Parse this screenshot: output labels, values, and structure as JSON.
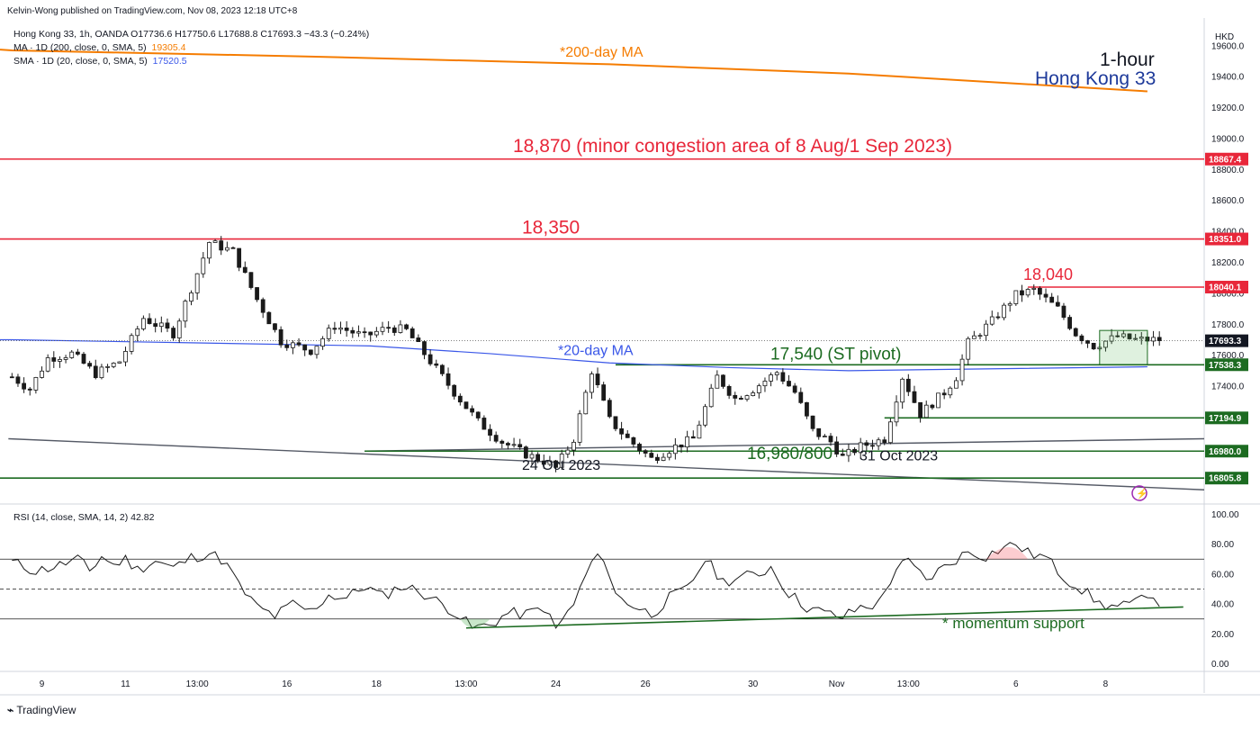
{
  "header": {
    "published_by": "Kelvin-Wong published on TradingView.com, Nov 08, 2023 12:18 UTC+8",
    "symbol_line": "Hong Kong 33, 1h, OANDA  O17736.6  H17750.6  L17688.8  C17693.3  −43.3 (−0.24%)",
    "ma200_label": "MA · 1D (200, close, 0, SMA, 5)",
    "ma200_value": "19305.4",
    "sma20_label": "SMA · 1D (20, close, 0, SMA, 5)",
    "sma20_value": "17520.5",
    "currency": "HKD"
  },
  "titles": {
    "timeframe": "1-hour",
    "instrument": "Hong Kong 33"
  },
  "footer": {
    "brand": "TradingView"
  },
  "colors": {
    "red_level": "#e8273a",
    "green_level": "#1c6b21",
    "candle_up": "#1a1a1a",
    "candle_down": "#1a1a1a",
    "ma200": "#f57c00",
    "sma20": "#3a57e8",
    "trendline": "#555a66",
    "price_tag": "#131722",
    "rsi_line": "#1a1a1a"
  },
  "chart_data": [
    {
      "type": "candlestick",
      "ylim": [
        16650,
        19750
      ],
      "y_ticks": [
        "19600.0",
        "19400.0",
        "19200.0",
        "19000.0",
        "18800.0",
        "18600.0",
        "18400.0",
        "18200.0",
        "18000.0",
        "17800.0",
        "17600.0",
        "17400.0",
        "17200.0",
        "17000.0",
        "16800.0"
      ],
      "x_ticks": [
        "9",
        "11",
        "13:00",
        "16",
        "18",
        "13:00",
        "24",
        "26",
        "30",
        "Nov",
        "13:00",
        "6",
        "8"
      ],
      "x_tick_index": [
        5,
        19,
        31,
        46,
        61,
        76,
        91,
        106,
        124,
        138,
        150,
        168,
        183
      ],
      "bars": 200,
      "price_anchors": [
        [
          0,
          17460
        ],
        [
          3,
          17380
        ],
        [
          6,
          17580
        ],
        [
          10,
          17610
        ],
        [
          14,
          17480
        ],
        [
          18,
          17560
        ],
        [
          22,
          17840
        ],
        [
          27,
          17740
        ],
        [
          31,
          18130
        ],
        [
          33,
          18330
        ],
        [
          37,
          18270
        ],
        [
          41,
          17960
        ],
        [
          45,
          17690
        ],
        [
          50,
          17630
        ],
        [
          54,
          17790
        ],
        [
          59,
          17720
        ],
        [
          63,
          17780
        ],
        [
          66,
          17760
        ],
        [
          70,
          17560
        ],
        [
          74,
          17360
        ],
        [
          78,
          17170
        ],
        [
          82,
          17040
        ],
        [
          86,
          16960
        ],
        [
          90,
          16900
        ],
        [
          91,
          16870
        ],
        [
          94,
          17060
        ],
        [
          97,
          17500
        ],
        [
          100,
          17180
        ],
        [
          103,
          17060
        ],
        [
          107,
          16930
        ],
        [
          111,
          17010
        ],
        [
          114,
          17060
        ],
        [
          118,
          17460
        ],
        [
          121,
          17320
        ],
        [
          124,
          17380
        ],
        [
          128,
          17490
        ],
        [
          131,
          17360
        ],
        [
          134,
          17110
        ],
        [
          137,
          17040
        ],
        [
          139,
          16940
        ],
        [
          142,
          17010
        ],
        [
          146,
          17060
        ],
        [
          149,
          17460
        ],
        [
          152,
          17220
        ],
        [
          156,
          17360
        ],
        [
          158,
          17460
        ],
        [
          160,
          17680
        ],
        [
          164,
          17820
        ],
        [
          168,
          17990
        ],
        [
          171,
          18020
        ],
        [
          175,
          17900
        ],
        [
          178,
          17740
        ],
        [
          181,
          17660
        ],
        [
          185,
          17720
        ],
        [
          188,
          17700
        ]
      ],
      "price_scale_tags": [
        {
          "price": 18867.4,
          "label": "18867.4",
          "color": "#e8273a"
        },
        {
          "price": 18351.0,
          "label": "18351.0",
          "color": "#e8273a"
        },
        {
          "price": 18040.1,
          "label": "18040.1",
          "color": "#e8273a"
        },
        {
          "price": 17693.3,
          "label": "17693.3",
          "color": "#131722"
        },
        {
          "price": 17538.3,
          "label": "17538.3",
          "color": "#1c6b21"
        },
        {
          "price": 17194.9,
          "label": "17194.9",
          "color": "#1c6b21"
        },
        {
          "price": 16980.0,
          "label": "16980.0",
          "color": "#1c6b21"
        },
        {
          "price": 16805.8,
          "label": "16805.8",
          "color": "#1c6b21"
        }
      ],
      "horizontal_levels": [
        {
          "name": "level-18870",
          "price": 18867.4,
          "from": 0,
          "to": 200,
          "color": "#e8273a"
        },
        {
          "name": "level-18350",
          "price": 18351.0,
          "from": 0,
          "to": 200,
          "color": "#e8273a"
        },
        {
          "name": "level-18040",
          "price": 18040.1,
          "from": 170,
          "to": 200,
          "color": "#e8273a"
        },
        {
          "name": "level-17540",
          "price": 17538.3,
          "from": 101,
          "to": 200,
          "color": "#1c6b21"
        },
        {
          "name": "level-17195",
          "price": 17194.9,
          "from": 146,
          "to": 200,
          "color": "#1c6b21"
        },
        {
          "name": "level-16980",
          "price": 16980.0,
          "from": 59,
          "to": 200,
          "color": "#1c6b21"
        },
        {
          "name": "level-16806",
          "price": 16805.8,
          "from": 0,
          "to": 200,
          "color": "#1c6b21"
        }
      ],
      "ma200": [
        [
          0,
          19570
        ],
        [
          50,
          19530
        ],
        [
          100,
          19480
        ],
        [
          140,
          19420
        ],
        [
          190,
          19305
        ]
      ],
      "sma20": [
        [
          0,
          17700
        ],
        [
          30,
          17680
        ],
        [
          60,
          17660
        ],
        [
          80,
          17610
        ],
        [
          100,
          17550
        ],
        [
          120,
          17520
        ],
        [
          140,
          17500
        ],
        [
          160,
          17510
        ],
        [
          190,
          17525
        ]
      ],
      "trendline": [
        [
          0,
          17060
        ],
        [
          200,
          16730
        ]
      ],
      "support_line": [
        [
          59,
          16980
        ],
        [
          200,
          17060
        ]
      ],
      "annotations": [
        {
          "name": "label-18870",
          "text": "18,870 (minor congestion area of 8 Aug/1 Sep 2023)",
          "color": "#e8273a"
        },
        {
          "name": "label-18350",
          "text": "18,350",
          "color": "#e8273a"
        },
        {
          "name": "label-18040",
          "text": "18,040",
          "color": "#e8273a"
        },
        {
          "name": "label-200day",
          "text": "*200-day MA",
          "color": "#f57c00"
        },
        {
          "name": "label-20day",
          "text": "*20-day MA",
          "color": "#3a57e8"
        },
        {
          "name": "label-st-pivot",
          "text": "17,540 (ST pivot)",
          "color": "#1c6b21"
        },
        {
          "name": "label-16980",
          "text": "16,980/800",
          "color": "#1c6b21"
        },
        {
          "name": "label-24oct",
          "text": "24 Oct 2023",
          "color": "#131722"
        },
        {
          "name": "label-31oct",
          "text": "31 Oct 2023",
          "color": "#131722"
        }
      ]
    },
    {
      "type": "line",
      "title": "RSI (14, close, SMA, 14, 2)",
      "last_value": "42.82",
      "ylim": [
        -5,
        105
      ],
      "y_ticks": [
        "100.00",
        "80.00",
        "60.00",
        "40.00",
        "20.00",
        "0.00"
      ],
      "bands": [
        70,
        50,
        30
      ],
      "series": [
        {
          "values": [
            [
              0,
              68
            ],
            [
              4,
              62
            ],
            [
              8,
              66
            ],
            [
              11,
              70
            ],
            [
              13,
              62
            ],
            [
              15,
              72
            ],
            [
              17,
              66
            ],
            [
              19,
              70
            ],
            [
              21,
              63
            ],
            [
              24,
              69
            ],
            [
              27,
              64
            ],
            [
              30,
              71
            ],
            [
              33,
              74
            ],
            [
              35,
              70
            ],
            [
              37,
              60
            ],
            [
              38,
              52
            ],
            [
              41,
              38
            ],
            [
              44,
              32
            ],
            [
              47,
              40
            ],
            [
              50,
              35
            ],
            [
              53,
              46
            ],
            [
              56,
              44
            ],
            [
              59,
              52
            ],
            [
              62,
              45
            ],
            [
              65,
              52
            ],
            [
              68,
              49
            ],
            [
              71,
              42
            ],
            [
              74,
              35
            ],
            [
              77,
              24
            ],
            [
              80,
              26
            ],
            [
              83,
              34
            ],
            [
              86,
              33
            ],
            [
              89,
              38
            ],
            [
              91,
              23
            ],
            [
              94,
              40
            ],
            [
              97,
              68
            ],
            [
              99,
              72
            ],
            [
              101,
              46
            ],
            [
              104,
              39
            ],
            [
              107,
              33
            ],
            [
              110,
              44
            ],
            [
              113,
              50
            ],
            [
              116,
              70
            ],
            [
              119,
              55
            ],
            [
              122,
              58
            ],
            [
              125,
              60
            ],
            [
              127,
              65
            ],
            [
              130,
              47
            ],
            [
              133,
              38
            ],
            [
              136,
              34
            ],
            [
              139,
              31
            ],
            [
              142,
              38
            ],
            [
              145,
              40
            ],
            [
              148,
              64
            ],
            [
              150,
              68
            ],
            [
              153,
              56
            ],
            [
              155,
              62
            ],
            [
              158,
              70
            ],
            [
              160,
              75
            ],
            [
              163,
              72
            ],
            [
              166,
              78
            ],
            [
              168,
              80
            ],
            [
              170,
              74
            ],
            [
              173,
              71
            ],
            [
              176,
              58
            ],
            [
              179,
              50
            ],
            [
              182,
              40
            ],
            [
              185,
              38
            ],
            [
              188,
              40
            ],
            [
              190,
              48
            ],
            [
              192,
              42
            ]
          ]
        }
      ],
      "momentum_support": [
        [
          76,
          24
        ],
        [
          196,
          38
        ]
      ],
      "annotations": [
        {
          "name": "label-momentum-support",
          "text": "* momentum support",
          "color": "#1c6b21"
        }
      ]
    }
  ]
}
